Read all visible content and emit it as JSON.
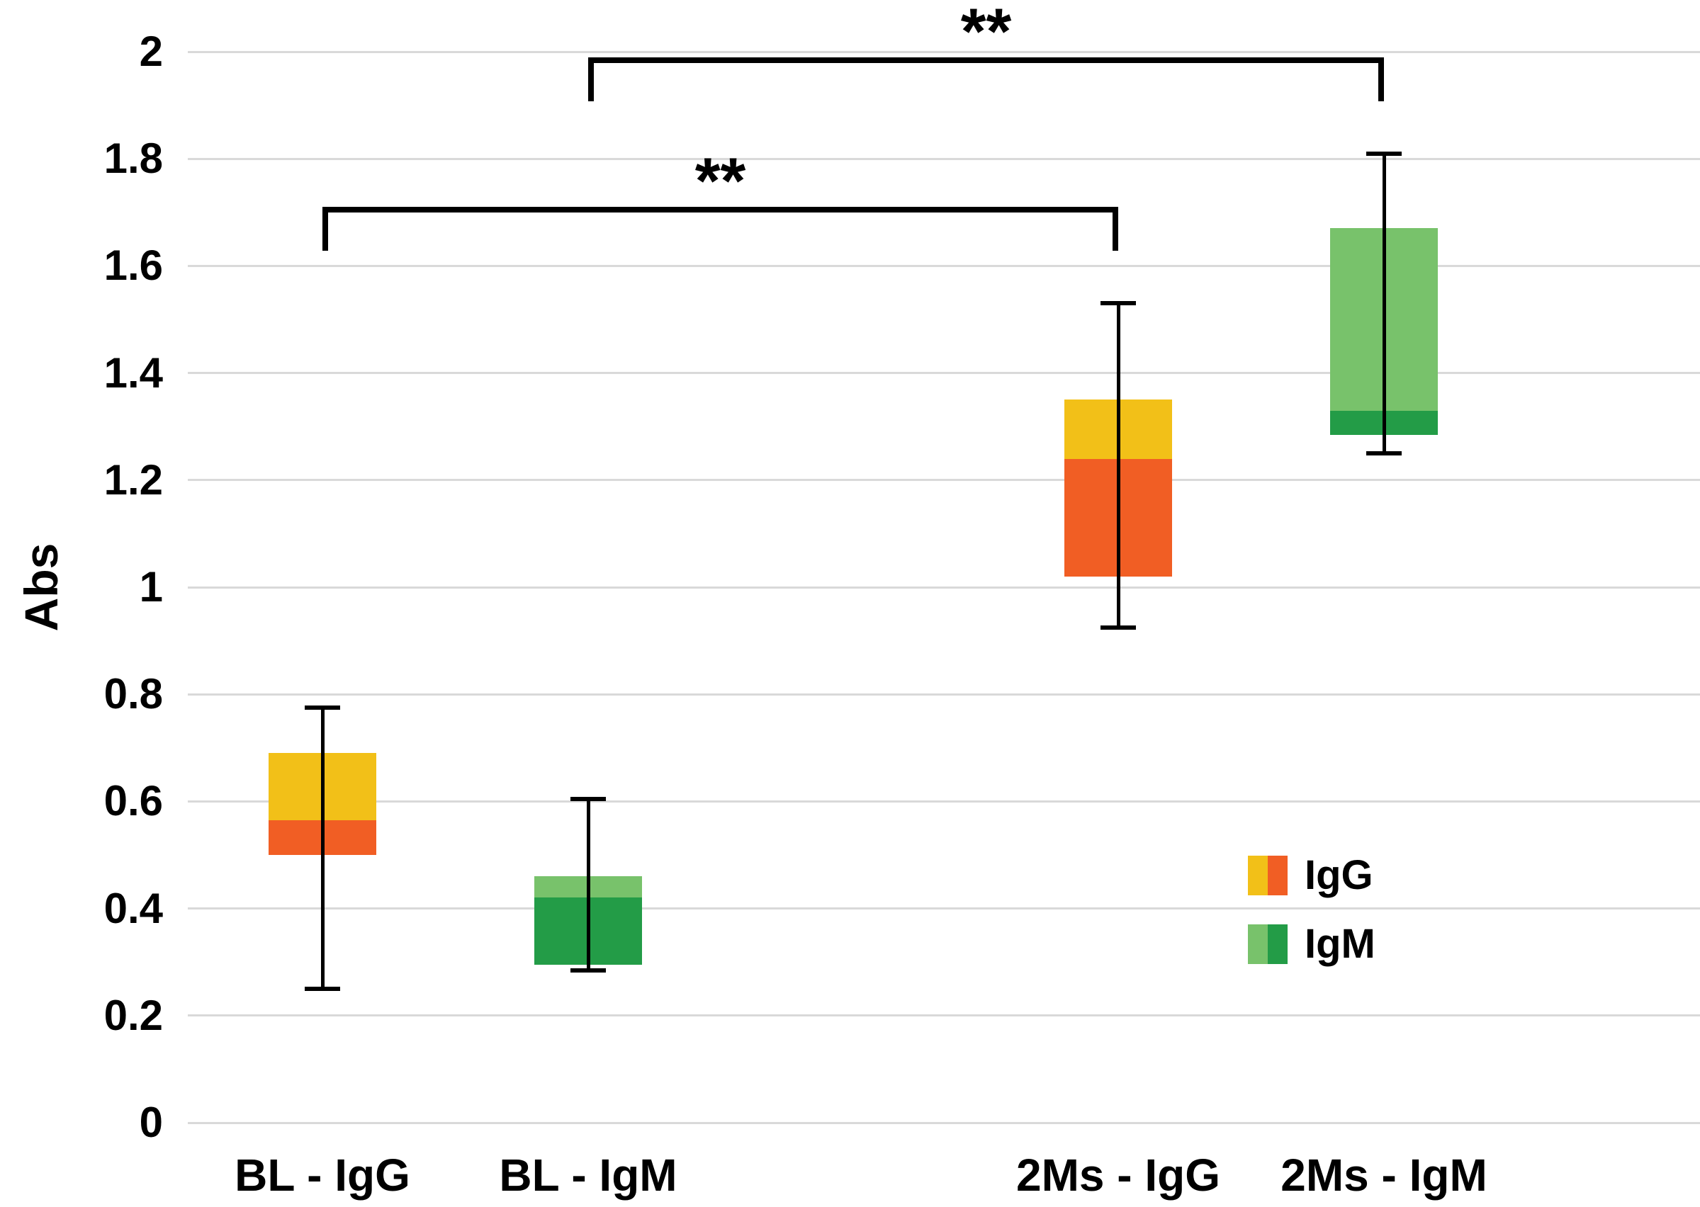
{
  "chart_data": {
    "type": "bar",
    "subtype": "floating two-segment stacked boxes with min-max whiskers (box plot style)",
    "title": "",
    "xlabel": "",
    "ylabel": "Abs",
    "ylim": [
      0,
      2
    ],
    "yticks": [
      "0",
      "0.2",
      "0.4",
      "0.6",
      "0.8",
      "1",
      "1.2",
      "1.4",
      "1.6",
      "1.8",
      "2"
    ],
    "grid": "horizontal light-gray gridlines at every 0.2, white background, no y-axis line",
    "categories": [
      "BL - IgG",
      "BL - IgM",
      "2Ms - IgG",
      "2Ms - IgM"
    ],
    "boxes": [
      {
        "category": "BL - IgG",
        "group": "IgG",
        "whisker_low": 0.25,
        "box_low": 0.5,
        "divider": 0.565,
        "box_high": 0.69,
        "whisker_high": 0.775,
        "lower_color": "#F15E24",
        "upper_color": "#F2C018"
      },
      {
        "category": "BL - IgM",
        "group": "IgM",
        "whisker_low": 0.285,
        "box_low": 0.295,
        "divider": 0.42,
        "box_high": 0.46,
        "whisker_high": 0.605,
        "lower_color": "#239C47",
        "upper_color": "#78C26B"
      },
      {
        "category": "2Ms - IgG",
        "group": "IgG",
        "whisker_low": 0.925,
        "box_low": 1.02,
        "divider": 1.24,
        "box_high": 1.35,
        "whisker_high": 1.53,
        "lower_color": "#F15E24",
        "upper_color": "#F2C018"
      },
      {
        "category": "2Ms - IgM",
        "group": "IgM",
        "whisker_low": 1.25,
        "box_low": 1.285,
        "divider": 1.33,
        "box_high": 1.67,
        "whisker_high": 1.81,
        "lower_color": "#239C47",
        "upper_color": "#78C26B"
      }
    ],
    "brackets": [
      {
        "from": "BL - IgG",
        "to": "2Ms - IgG",
        "y": 1.71,
        "label": "**"
      },
      {
        "from": "BL - IgM",
        "to": "2Ms - IgM",
        "y": 1.99,
        "label": "**"
      }
    ],
    "legend": {
      "position": "inside lower right",
      "entries": [
        {
          "label": "IgG",
          "swatch_colors": [
            "#F2C018",
            "#F15E24"
          ]
        },
        {
          "label": "IgM",
          "swatch_colors": [
            "#78C26B",
            "#239C47"
          ]
        }
      ]
    },
    "colors": {
      "igg_upper_yellow": "#F2C018",
      "igg_lower_orange": "#F15E24",
      "igm_upper_light_green": "#78C26B",
      "igm_lower_dark_green": "#239C47",
      "gridline": "#D9D9D9",
      "whisker_and_bracket": "#000000",
      "text": "#000000",
      "background": "#FFFFFF"
    }
  }
}
